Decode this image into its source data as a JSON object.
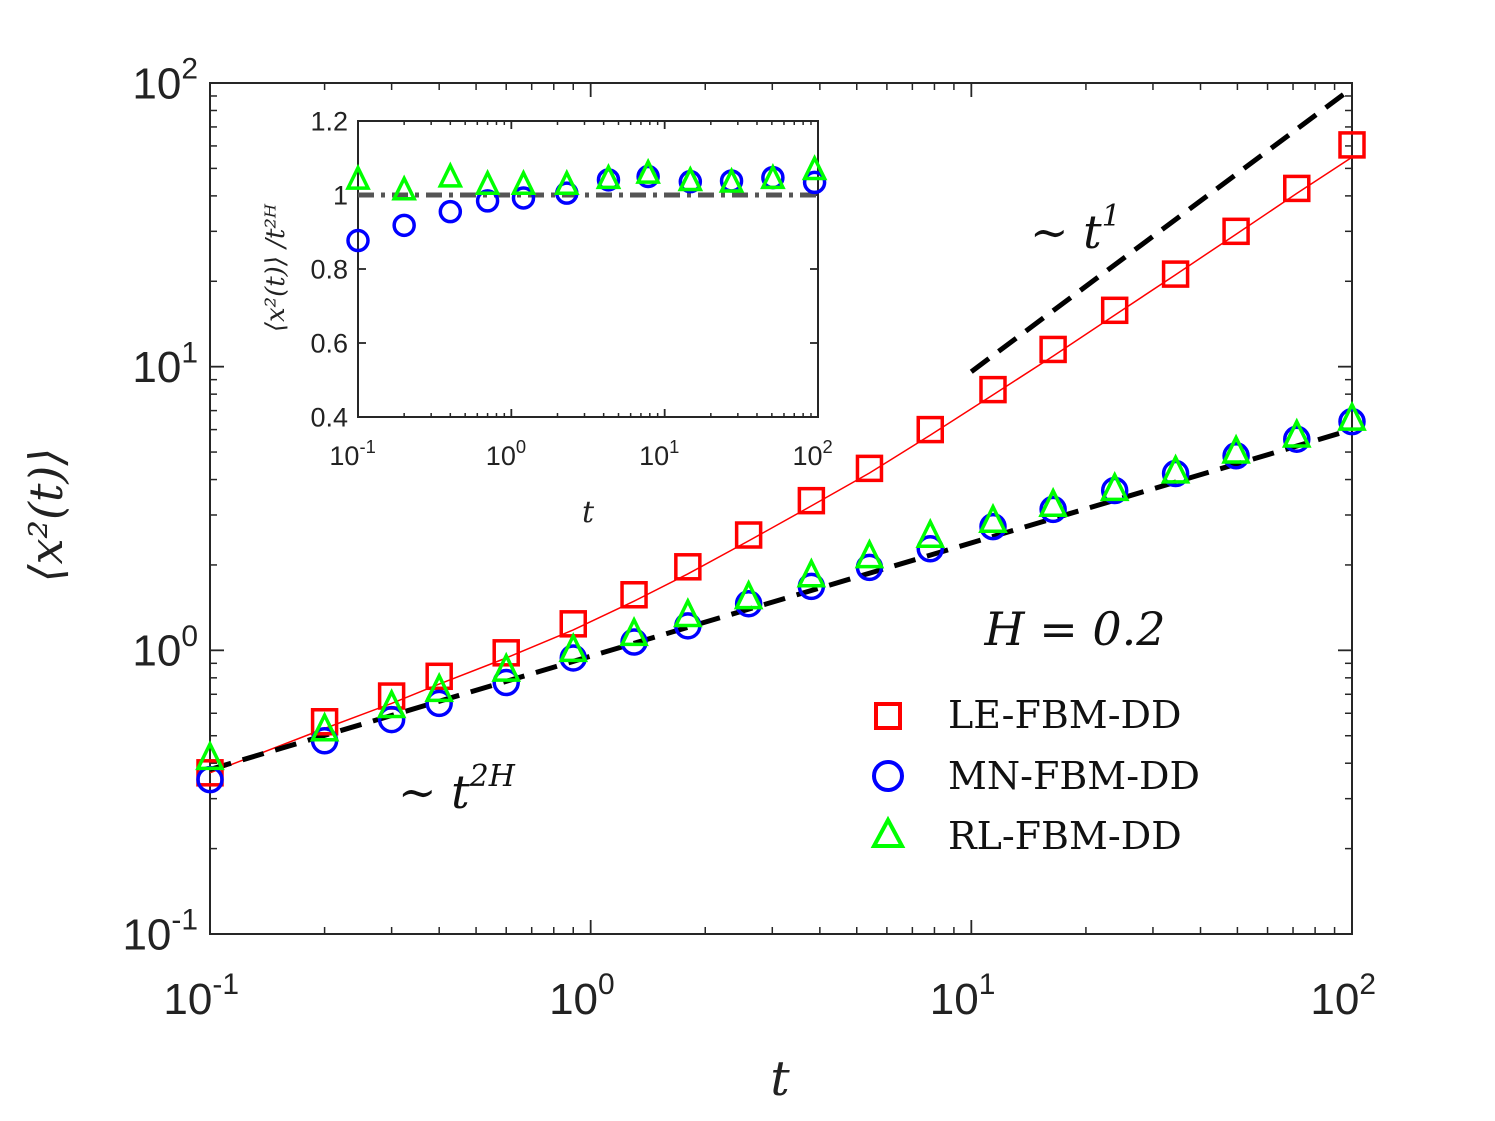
{
  "chart_data": [
    {
      "id": "main",
      "type": "scatter",
      "x_scale": "log",
      "y_scale": "log",
      "xlim": [
        0.1,
        100
      ],
      "ylim": [
        0.1,
        100
      ],
      "xlabel": "t",
      "ylabel": "⟨x²(t)⟩",
      "x_ticks": [
        {
          "value": 0.1,
          "base": "10",
          "exp": "-1"
        },
        {
          "value": 1,
          "base": "10",
          "exp": "0"
        },
        {
          "value": 10,
          "base": "10",
          "exp": "1"
        },
        {
          "value": 100,
          "base": "10",
          "exp": "2"
        }
      ],
      "y_ticks": [
        {
          "value": 0.1,
          "base": "10",
          "exp": "-1"
        },
        {
          "value": 1,
          "base": "10",
          "exp": "0"
        },
        {
          "value": 10,
          "base": "10",
          "exp": "1"
        },
        {
          "value": 100,
          "base": "10",
          "exp": "2"
        }
      ],
      "annotations": {
        "H_label": "H = 0.2",
        "slope_t1": {
          "prefix": "∼ t",
          "exp": "1"
        },
        "slope_t2H": {
          "prefix": "∼ t",
          "exp": "2H"
        }
      },
      "series": [
        {
          "name": "LE-FBM-DD",
          "marker": "square",
          "color": "#ff0000",
          "x": [
            0.1,
            0.2,
            0.3,
            0.4,
            0.6,
            0.9,
            1.3,
            1.8,
            2.6,
            3.8,
            5.4,
            7.8,
            11.4,
            16.4,
            23.8,
            34.4,
            49.6,
            71.6,
            100
          ],
          "y": [
            0.37,
            0.56,
            0.69,
            0.81,
            0.98,
            1.24,
            1.57,
            1.97,
            2.55,
            3.37,
            4.38,
            6.0,
            8.3,
            11.5,
            15.8,
            21.2,
            30.0,
            42.5,
            60.5
          ]
        },
        {
          "name": "MN-FBM-DD",
          "marker": "circle",
          "color": "#0000ff",
          "x": [
            0.1,
            0.2,
            0.3,
            0.4,
            0.6,
            0.9,
            1.3,
            1.8,
            2.6,
            3.8,
            5.4,
            7.8,
            11.4,
            16.4,
            23.8,
            34.4,
            49.6,
            71.6,
            100
          ],
          "y": [
            0.35,
            0.48,
            0.57,
            0.65,
            0.77,
            0.94,
            1.07,
            1.22,
            1.46,
            1.68,
            1.96,
            2.28,
            2.73,
            3.14,
            3.66,
            4.2,
            4.85,
            5.55,
            6.4
          ]
        },
        {
          "name": "RL-FBM-DD",
          "marker": "triangle",
          "color": "#00ff00",
          "x": [
            0.1,
            0.2,
            0.3,
            0.4,
            0.6,
            0.9,
            1.3,
            1.8,
            2.6,
            3.8,
            5.4,
            7.8,
            11.4,
            16.4,
            23.8,
            34.4,
            49.6,
            71.6,
            100
          ],
          "y": [
            0.42,
            0.53,
            0.64,
            0.73,
            0.86,
            1.01,
            1.15,
            1.34,
            1.55,
            1.85,
            2.16,
            2.55,
            2.88,
            3.28,
            3.73,
            4.3,
            5.05,
            5.75,
            6.6
          ]
        }
      ],
      "lines": [
        {
          "name": "LE-FBM-DD fit",
          "style": "solid",
          "color": "#ff0000",
          "x": [
            0.1,
            0.2,
            0.3,
            0.4,
            0.6,
            0.9,
            1.3,
            1.8,
            2.6,
            3.8,
            5.4,
            7.8,
            11.4,
            16.4,
            23.8,
            34.4,
            49.6,
            71.6,
            100
          ],
          "y": [
            0.37,
            0.53,
            0.65,
            0.76,
            0.94,
            1.18,
            1.49,
            1.86,
            2.43,
            3.23,
            4.22,
            5.74,
            7.95,
            10.9,
            15.2,
            21.1,
            29.3,
            40.8,
            54.7
          ]
        },
        {
          "name": "slope 2H",
          "style": "dashed",
          "color": "#000000",
          "x": [
            0.1,
            100
          ],
          "y": [
            0.38,
            6.0
          ]
        },
        {
          "name": "slope 1",
          "style": "dashed",
          "color": "#000000",
          "x": [
            10,
            100
          ],
          "y": [
            9.6,
            96
          ]
        }
      ]
    },
    {
      "id": "inset",
      "type": "scatter",
      "x_scale": "log",
      "y_scale": "linear",
      "xlim": [
        0.1,
        100
      ],
      "ylim": [
        0.4,
        1.2
      ],
      "xlabel": "t",
      "ylabel": "⟨x²(t)⟩ /t²ᴴ",
      "x_ticks": [
        {
          "value": 0.1,
          "base": "10",
          "exp": "-1"
        },
        {
          "value": 1,
          "base": "10",
          "exp": "0"
        },
        {
          "value": 10,
          "base": "10",
          "exp": "1"
        },
        {
          "value": 100,
          "base": "10",
          "exp": "2"
        }
      ],
      "y_ticks": [
        {
          "value": 0.4,
          "label": "0.4"
        },
        {
          "value": 0.6,
          "label": "0.6"
        },
        {
          "value": 0.8,
          "label": "0.8"
        },
        {
          "value": 1,
          "label": "1"
        },
        {
          "value": 1.2,
          "label": "1.2"
        }
      ],
      "series": [
        {
          "name": "MN-FBM-DD",
          "marker": "circle",
          "color": "#0000ff",
          "x": [
            0.1,
            0.2,
            0.4,
            0.7,
            1.2,
            2.3,
            4.3,
            7.8,
            14.7,
            27.3,
            50.8,
            95
          ],
          "y": [
            0.877,
            0.918,
            0.955,
            0.984,
            0.992,
            1.005,
            1.041,
            1.05,
            1.036,
            1.038,
            1.047,
            1.034
          ]
        },
        {
          "name": "RL-FBM-DD",
          "marker": "triangle",
          "color": "#00ff00",
          "x": [
            0.1,
            0.2,
            0.4,
            0.7,
            1.2,
            2.3,
            4.3,
            7.8,
            14.7,
            27.3,
            50.8,
            95
          ],
          "y": [
            1.044,
            1.015,
            1.05,
            1.03,
            1.03,
            1.03,
            1.046,
            1.06,
            1.04,
            1.036,
            1.046,
            1.07
          ]
        }
      ],
      "lines": [
        {
          "name": "reference",
          "style": "dashdot",
          "color": "#555555",
          "x": [
            0.1,
            100
          ],
          "y": [
            1.0,
            1.0
          ]
        }
      ]
    }
  ]
}
